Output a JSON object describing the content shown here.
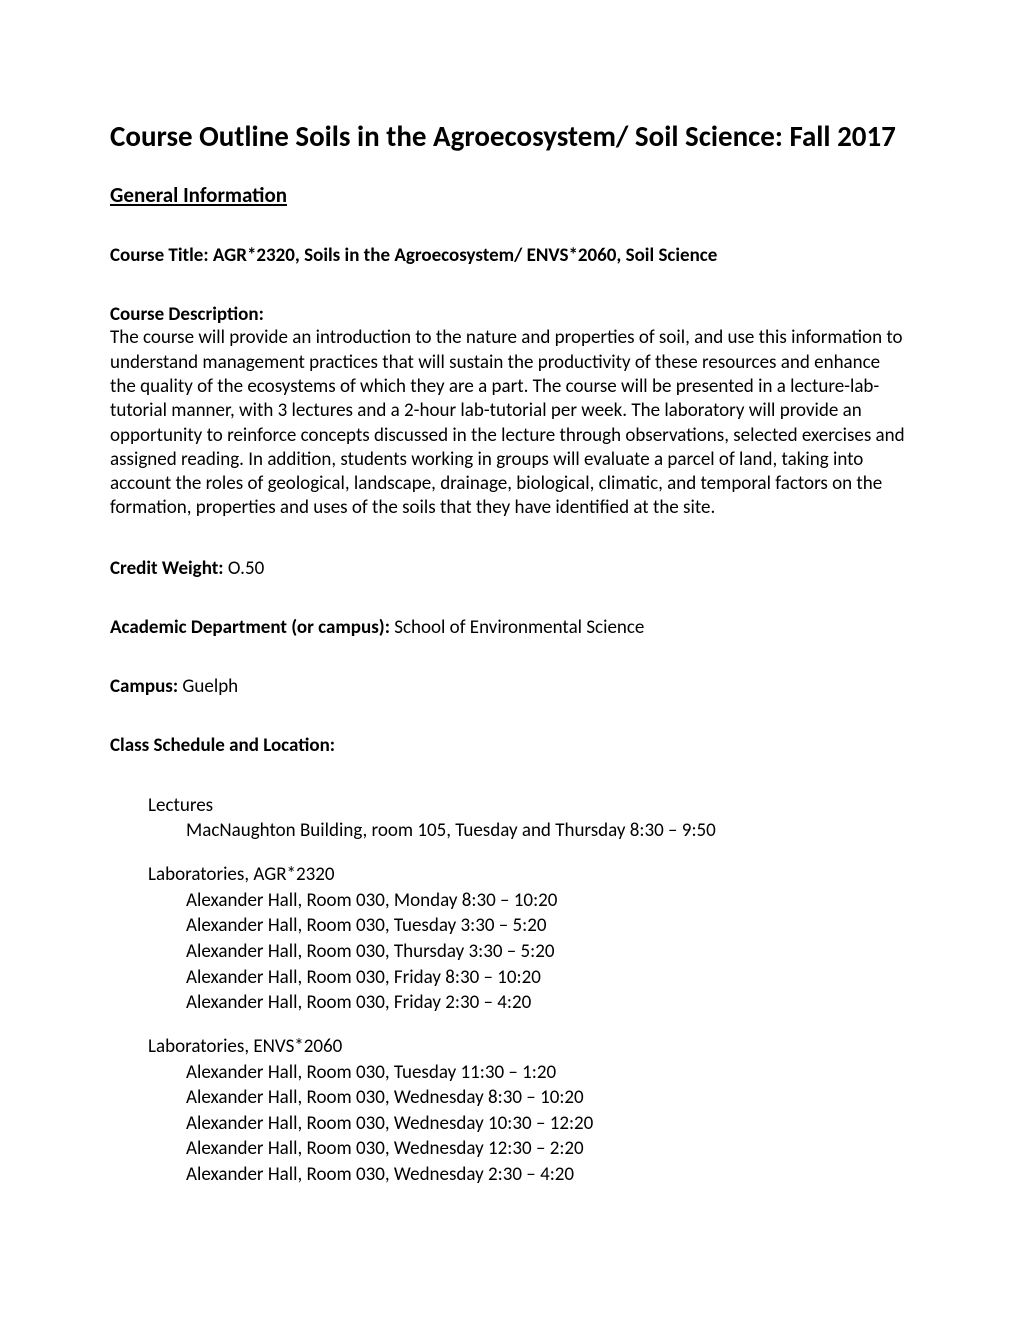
{
  "title": "Course Outline Soils in the Agroecosystem/ Soil Science: Fall 2017",
  "section_heading": "General Information",
  "course_title_label": "Course Title: AGR*2320, Soils in the Agroecosystem/ ENVS*2060, Soil Science",
  "description": {
    "label": "Course Description:",
    "body": "The course will provide an introduction to the nature and properties of soil, and use this information to understand management practices that will sustain the productivity of these resources and enhance the quality of the ecosystems of which they are a part.  The course will be presented in a lecture-lab-tutorial manner, with 3 lectures and a 2-hour lab-tutorial per week.  The laboratory will provide an opportunity to reinforce concepts discussed in the lecture through observations, selected exercises and assigned reading.  In addition, students working in groups will evaluate a parcel of land, taking into account the roles of geological, landscape, drainage, biological, climatic, and temporal factors on the formation, properties and uses of the soils that they have identified at the site."
  },
  "credit_weight": {
    "label": "Credit Weight: ",
    "value": "O.50"
  },
  "department": {
    "label": "Academic Department (or campus): ",
    "value": "School of Environmental Science"
  },
  "campus": {
    "label": "Campus: ",
    "value": "Guelph"
  },
  "schedule_label": "Class Schedule and Location:",
  "schedule": [
    {
      "title": "Lectures",
      "lines": [
        "MacNaughton Building, room 105, Tuesday and Thursday 8:30 – 9:50"
      ]
    },
    {
      "title": "Laboratories, AGR*2320",
      "lines": [
        "Alexander Hall, Room 030, Monday 8:30 – 10:20",
        "Alexander Hall, Room 030, Tuesday 3:30 – 5:20",
        "Alexander Hall, Room 030, Thursday 3:30 – 5:20",
        "Alexander Hall, Room 030, Friday 8:30 – 10:20",
        "Alexander Hall, Room 030, Friday 2:30 – 4:20"
      ]
    },
    {
      "title": "Laboratories, ENVS*2060",
      "lines": [
        "Alexander Hall, Room 030, Tuesday 11:30 – 1:20",
        "Alexander Hall, Room 030, Wednesday 8:30 – 10:20",
        "Alexander Hall, Room 030, Wednesday 10:30 – 12:20",
        "Alexander Hall, Room 030, Wednesday 12:30 – 2:20",
        "Alexander Hall, Room 030, Wednesday 2:30 – 4:20"
      ]
    }
  ]
}
